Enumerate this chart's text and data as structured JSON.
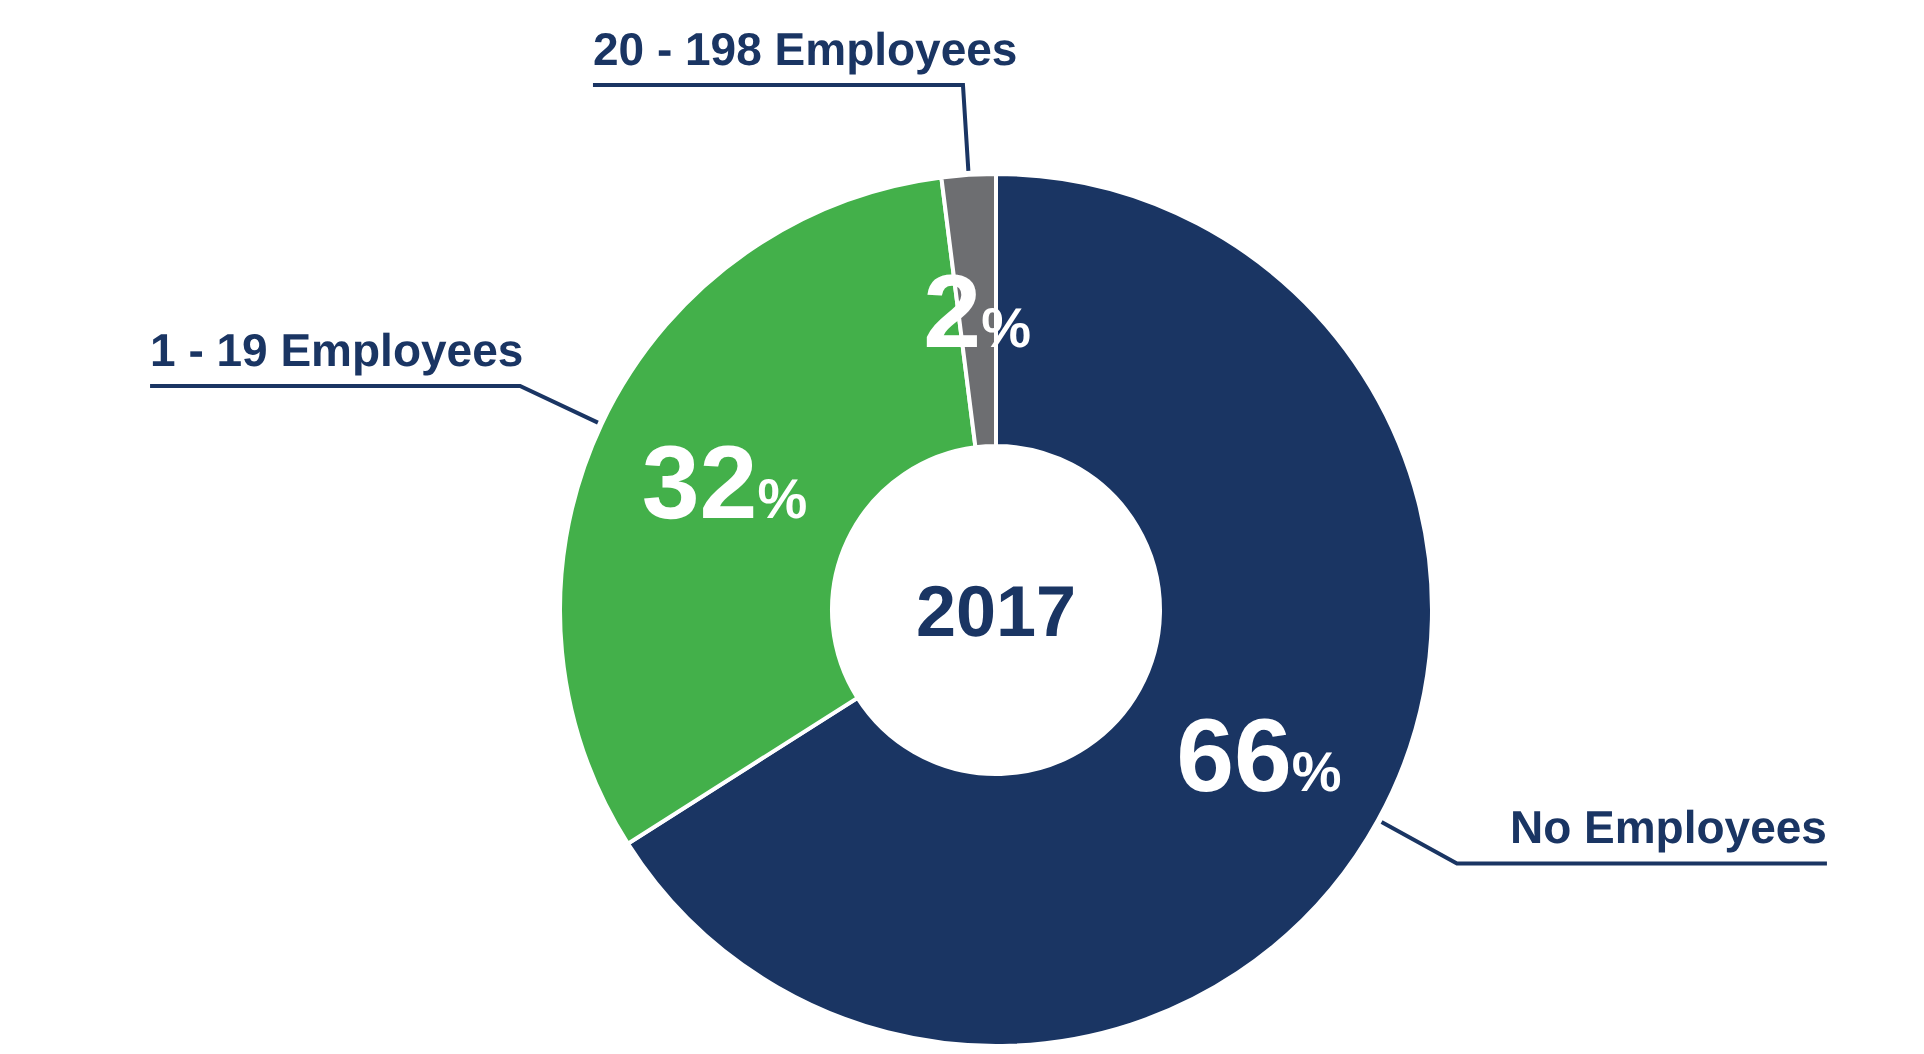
{
  "chart_data": {
    "type": "donut",
    "title": "2017",
    "categories": [
      "No Employees",
      "1 - 19 Employees",
      "20 - 198 Employees"
    ],
    "values": [
      66,
      32,
      2
    ],
    "colors": [
      "#1a3563",
      "#43b04a",
      "#6d6e71"
    ],
    "value_labels": [
      "66%",
      "32%",
      "2%"
    ]
  }
}
